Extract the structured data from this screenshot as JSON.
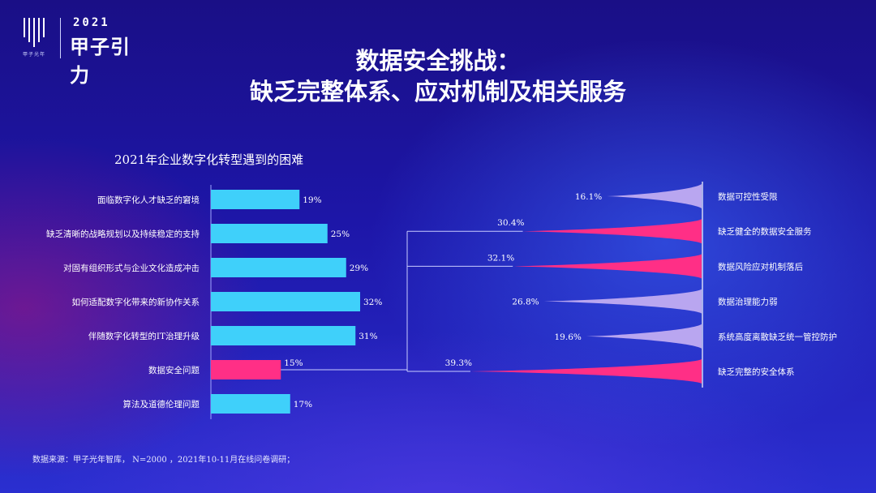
{
  "brand": {
    "year": "2021",
    "name": "甲子引力",
    "sub": "甲子光年"
  },
  "header": {
    "title_line1": "数据安全挑战：",
    "title_line2": "缺乏完整体系、应对机制及相关服务"
  },
  "footer": {
    "source": "数据来源：甲子光年智库， N=2000 ，2021年10-11月在线问卷调研；"
  },
  "colors": {
    "bar_default": "#3fd0fa",
    "bar_highlight": "#ff2f86",
    "connector": "#c9ccff",
    "spike_purple": "#b9a6f0",
    "spike_pink": "#ff2f86"
  },
  "chart_data": [
    {
      "type": "bar",
      "orientation": "horizontal",
      "title": "2021年企业数字化转型遇到的困难",
      "categories": [
        "面临数字化人才缺乏的窘境",
        "缺乏清晰的战略规划以及持续稳定的支持",
        "对固有组织形式与企业文化造成冲击",
        "如何适配数字化带来的新协作关系",
        "伴随数字化转型的IT治理升级",
        "数据安全问题",
        "算法及道德伦理问题"
      ],
      "values": [
        19,
        25,
        29,
        32,
        31,
        15,
        17
      ],
      "value_labels": [
        "19%",
        "25%",
        "29%",
        "32%",
        "31%",
        "15%",
        "17%"
      ],
      "highlight_index": 5,
      "xlim": [
        0,
        35
      ]
    },
    {
      "type": "bar",
      "orientation": "horizontal",
      "title": "",
      "style": "spike",
      "categories": [
        "数据可控性受限",
        "缺乏健全的数据安全服务",
        "数据风险应对机制落后",
        "数据治理能力弱",
        "系统高度离散缺乏统一管控防护",
        "缺乏完整的安全体系"
      ],
      "values": [
        16.1,
        30.4,
        32.1,
        26.8,
        19.6,
        39.3
      ],
      "value_labels": [
        "16.1%",
        "30.4%",
        "32.1%",
        "26.8%",
        "19.6%",
        "39.3%"
      ],
      "colors": [
        "purple",
        "pink",
        "pink",
        "purple",
        "purple",
        "pink"
      ],
      "xlim": [
        0,
        40
      ]
    }
  ]
}
